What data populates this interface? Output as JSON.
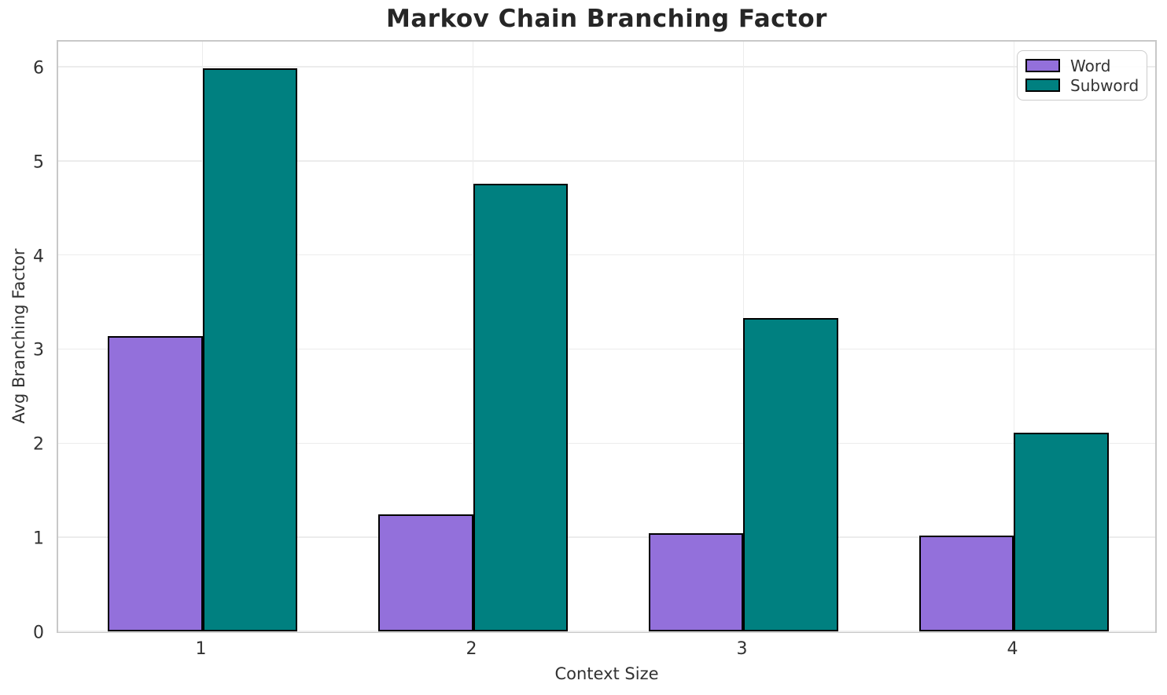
{
  "chart_data": {
    "type": "bar",
    "title": "Markov Chain Branching Factor",
    "xlabel": "Context Size",
    "ylabel": "Avg Branching Factor",
    "categories": [
      "1",
      "2",
      "3",
      "4"
    ],
    "series": [
      {
        "name": "Word",
        "color": "#9370DB",
        "values": [
          3.14,
          1.24,
          1.04,
          1.02
        ]
      },
      {
        "name": "Subword",
        "color": "#008080",
        "values": [
          5.98,
          4.76,
          3.33,
          2.11
        ]
      }
    ],
    "bar_width_units": 0.35,
    "bar_edge_color": "#000000",
    "xlim": [
      0.4665,
      4.5335
    ],
    "ylim": [
      0,
      6.3
    ],
    "yticks": [
      0,
      1,
      2,
      3,
      4,
      5,
      6
    ],
    "grid": true,
    "grid_color": "#ececec",
    "spine_color": "#c8c8c8",
    "background_color": "#ffffff",
    "legend_position": "upper right"
  }
}
